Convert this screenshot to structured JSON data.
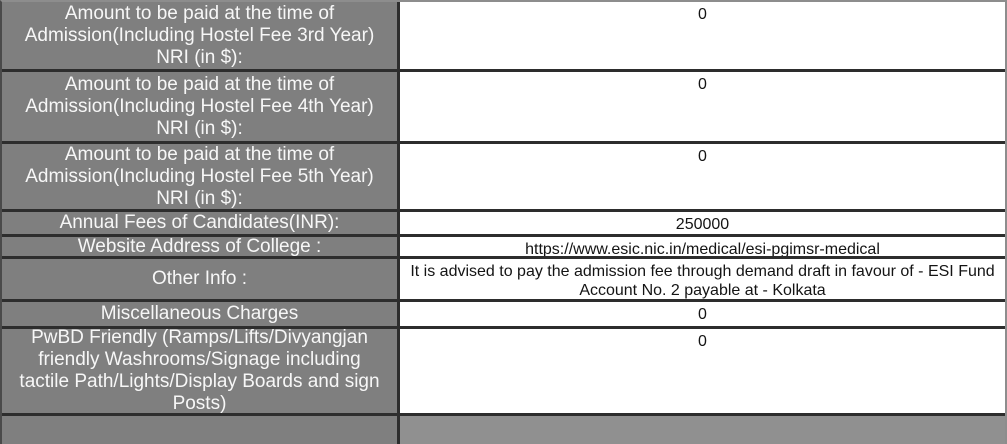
{
  "table_name": "college-fee-details",
  "colors": {
    "label_background": "#7f7f7f",
    "label_text": "#f7f7f7",
    "value_background": "#ffffff",
    "value_text": "#141414",
    "inner_border": "#2d2d2d",
    "outer_border": "#8d8d8d"
  },
  "rows": [
    {
      "label": "Amount to be paid at the time of Admission(Including Hostel Fee 3rd Year) NRI (in $):",
      "value": "0"
    },
    {
      "label": "Amount to be paid at the time of Admission(Including Hostel Fee 4th Year) NRI (in $):",
      "value": "0"
    },
    {
      "label": "Amount to be paid at the time of Admission(Including Hostel Fee 5th Year) NRI (in $):",
      "value": "0"
    },
    {
      "label": "Annual Fees of Candidates(INR):",
      "value": "250000"
    },
    {
      "label": "Website Address of College :",
      "value": "https://www.esic.nic.in/medical/esi-pgimsr-medical"
    },
    {
      "label": "Other Info :",
      "value": "It is advised to pay the admission fee through demand draft in favour of - ESI Fund Account No. 2 payable at - Kolkata"
    },
    {
      "label": "Miscellaneous Charges",
      "value": "0"
    },
    {
      "label": "PwBD Friendly (Ramps/Lifts/Divyangjan friendly Washrooms/Signage including tactile Path/Lights/Display Boards and sign Posts)",
      "value": "0"
    },
    {
      "label": "",
      "value": ""
    }
  ]
}
